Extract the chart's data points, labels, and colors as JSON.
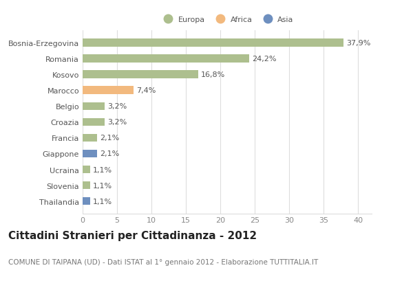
{
  "categories": [
    "Bosnia-Erzegovina",
    "Romania",
    "Kosovo",
    "Marocco",
    "Belgio",
    "Croazia",
    "Francia",
    "Giappone",
    "Ucraina",
    "Slovenia",
    "Thailandia"
  ],
  "values": [
    37.9,
    24.2,
    16.8,
    7.4,
    3.2,
    3.2,
    2.1,
    2.1,
    1.1,
    1.1,
    1.1
  ],
  "labels": [
    "37,9%",
    "24,2%",
    "16,8%",
    "7,4%",
    "3,2%",
    "3,2%",
    "2,1%",
    "2,1%",
    "1,1%",
    "1,1%",
    "1,1%"
  ],
  "colors": [
    "#adbf8e",
    "#adbf8e",
    "#adbf8e",
    "#f2b97e",
    "#adbf8e",
    "#adbf8e",
    "#adbf8e",
    "#6e8fbf",
    "#adbf8e",
    "#adbf8e",
    "#6e8fbf"
  ],
  "legend_labels": [
    "Europa",
    "Africa",
    "Asia"
  ],
  "legend_colors": [
    "#adbf8e",
    "#f2b97e",
    "#6e8fbf"
  ],
  "title": "Cittadini Stranieri per Cittadinanza - 2012",
  "subtitle": "COMUNE DI TAIPANA (UD) - Dati ISTAT al 1° gennaio 2012 - Elaborazione TUTTITALIA.IT",
  "xlim": [
    0,
    42
  ],
  "xticks": [
    0,
    5,
    10,
    15,
    20,
    25,
    30,
    35,
    40
  ],
  "background_color": "#ffffff",
  "grid_color": "#dddddd",
  "bar_height": 0.5,
  "label_fontsize": 8,
  "tick_fontsize": 8,
  "title_fontsize": 11,
  "subtitle_fontsize": 7.5
}
